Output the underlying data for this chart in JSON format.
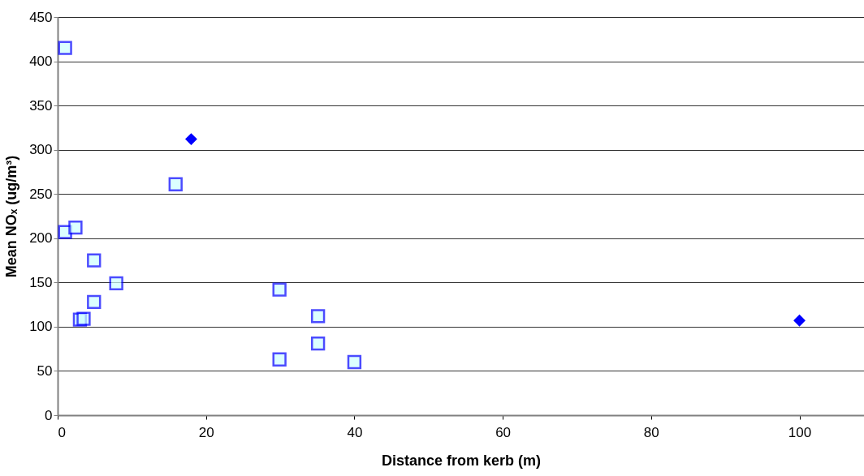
{
  "chart_data": {
    "type": "scatter",
    "xlabel": "Distance from kerb (m)",
    "ylabel": "Mean NOₓ (ug/m³)",
    "xlim": [
      0,
      108.7
    ],
    "xticks": [
      0,
      20,
      40,
      60,
      80,
      100
    ],
    "ylim": [
      0,
      450
    ],
    "yticks": [
      0,
      50,
      100,
      150,
      200,
      250,
      300,
      350,
      400,
      450
    ],
    "grid": "y",
    "series": [
      {
        "color": "#0000ff",
        "marker": "square",
        "x": [
          1,
          1,
          2.4,
          3,
          3.5,
          4.9,
          4.9,
          7.9,
          15.9,
          29.9,
          29.9,
          35.1,
          35.1,
          40
        ],
        "values": [
          415,
          207,
          212,
          108,
          109,
          175,
          128,
          149,
          261,
          142,
          63,
          112,
          81,
          60
        ]
      },
      {
        "color": "#0000ff",
        "marker": "diamond",
        "x": [
          18,
          100
        ],
        "values": [
          312,
          107
        ]
      }
    ]
  }
}
